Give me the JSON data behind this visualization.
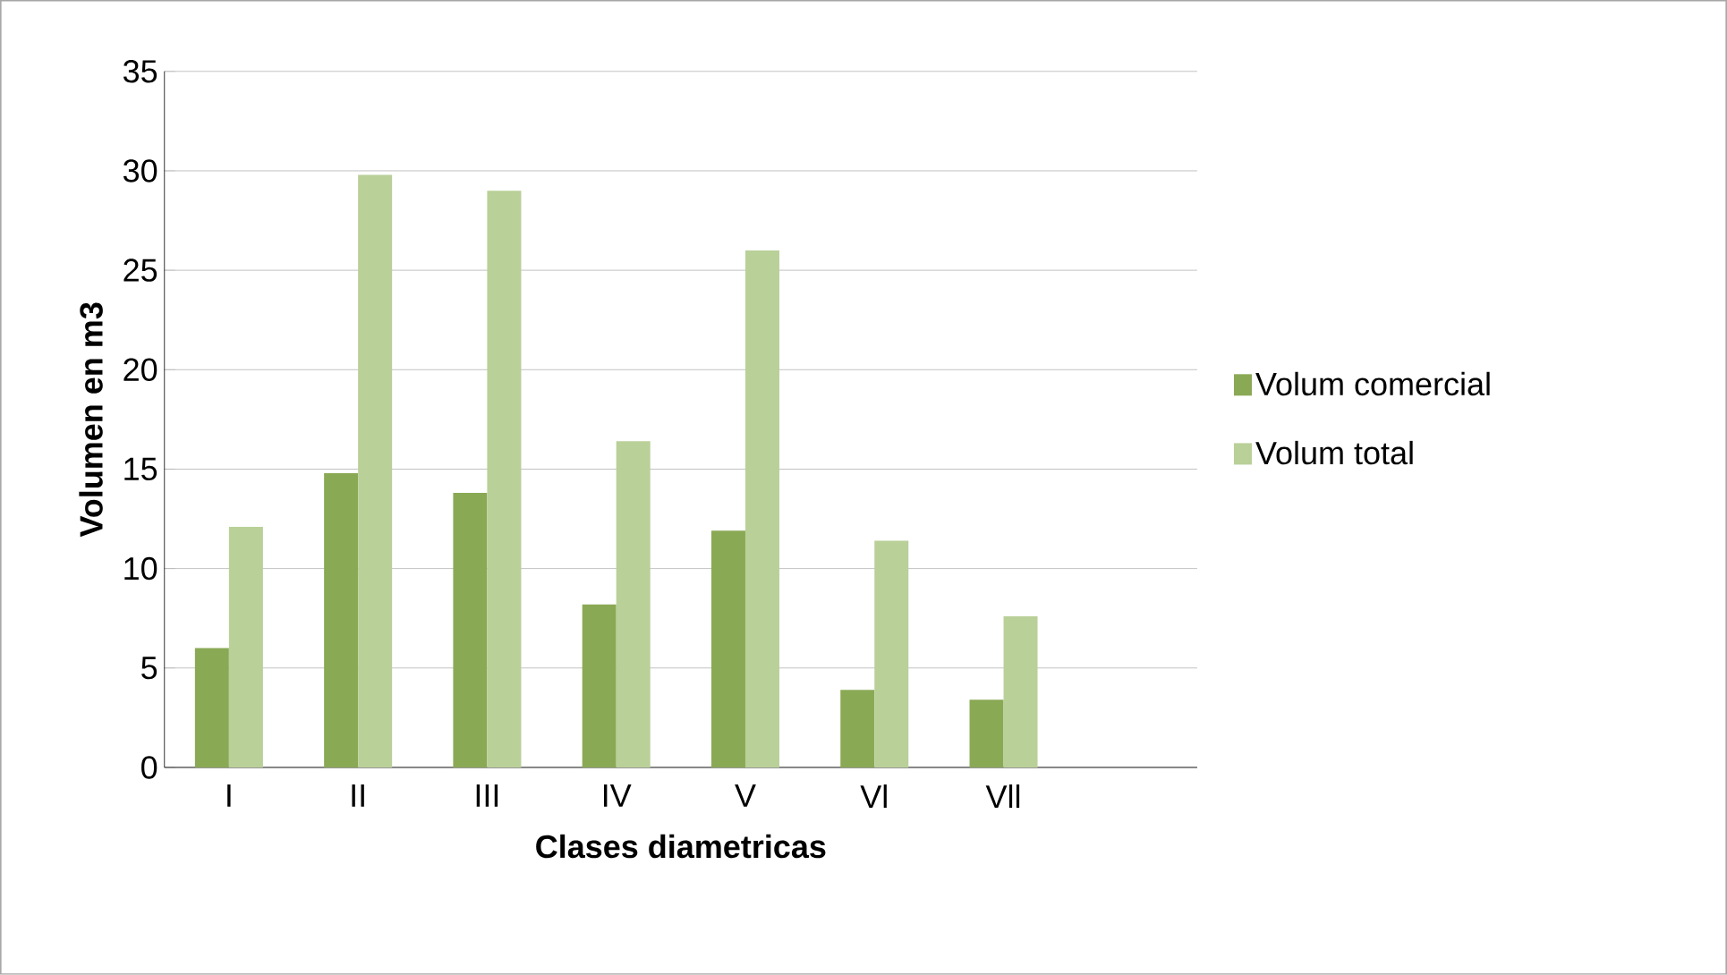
{
  "chart_data": {
    "type": "bar",
    "xlabel": "Clases diametricas",
    "ylabel": "Volumen en m3",
    "categories": [
      "I",
      "II",
      "III",
      "IV",
      "V",
      "Vl",
      "Vll",
      null
    ],
    "series": [
      {
        "name": "Volum comercial",
        "color": "#8aa955",
        "values": [
          6.0,
          14.8,
          13.8,
          8.2,
          11.9,
          3.9,
          3.4,
          null
        ]
      },
      {
        "name": "Volum total",
        "color": "#b9d098",
        "values": [
          12.1,
          29.8,
          29.0,
          16.4,
          26.0,
          11.4,
          7.6,
          null
        ]
      }
    ],
    "ylim": [
      0,
      35
    ],
    "yticks": [
      0,
      5,
      10,
      15,
      20,
      25,
      30,
      35
    ],
    "grid": "y",
    "legend": "right"
  }
}
